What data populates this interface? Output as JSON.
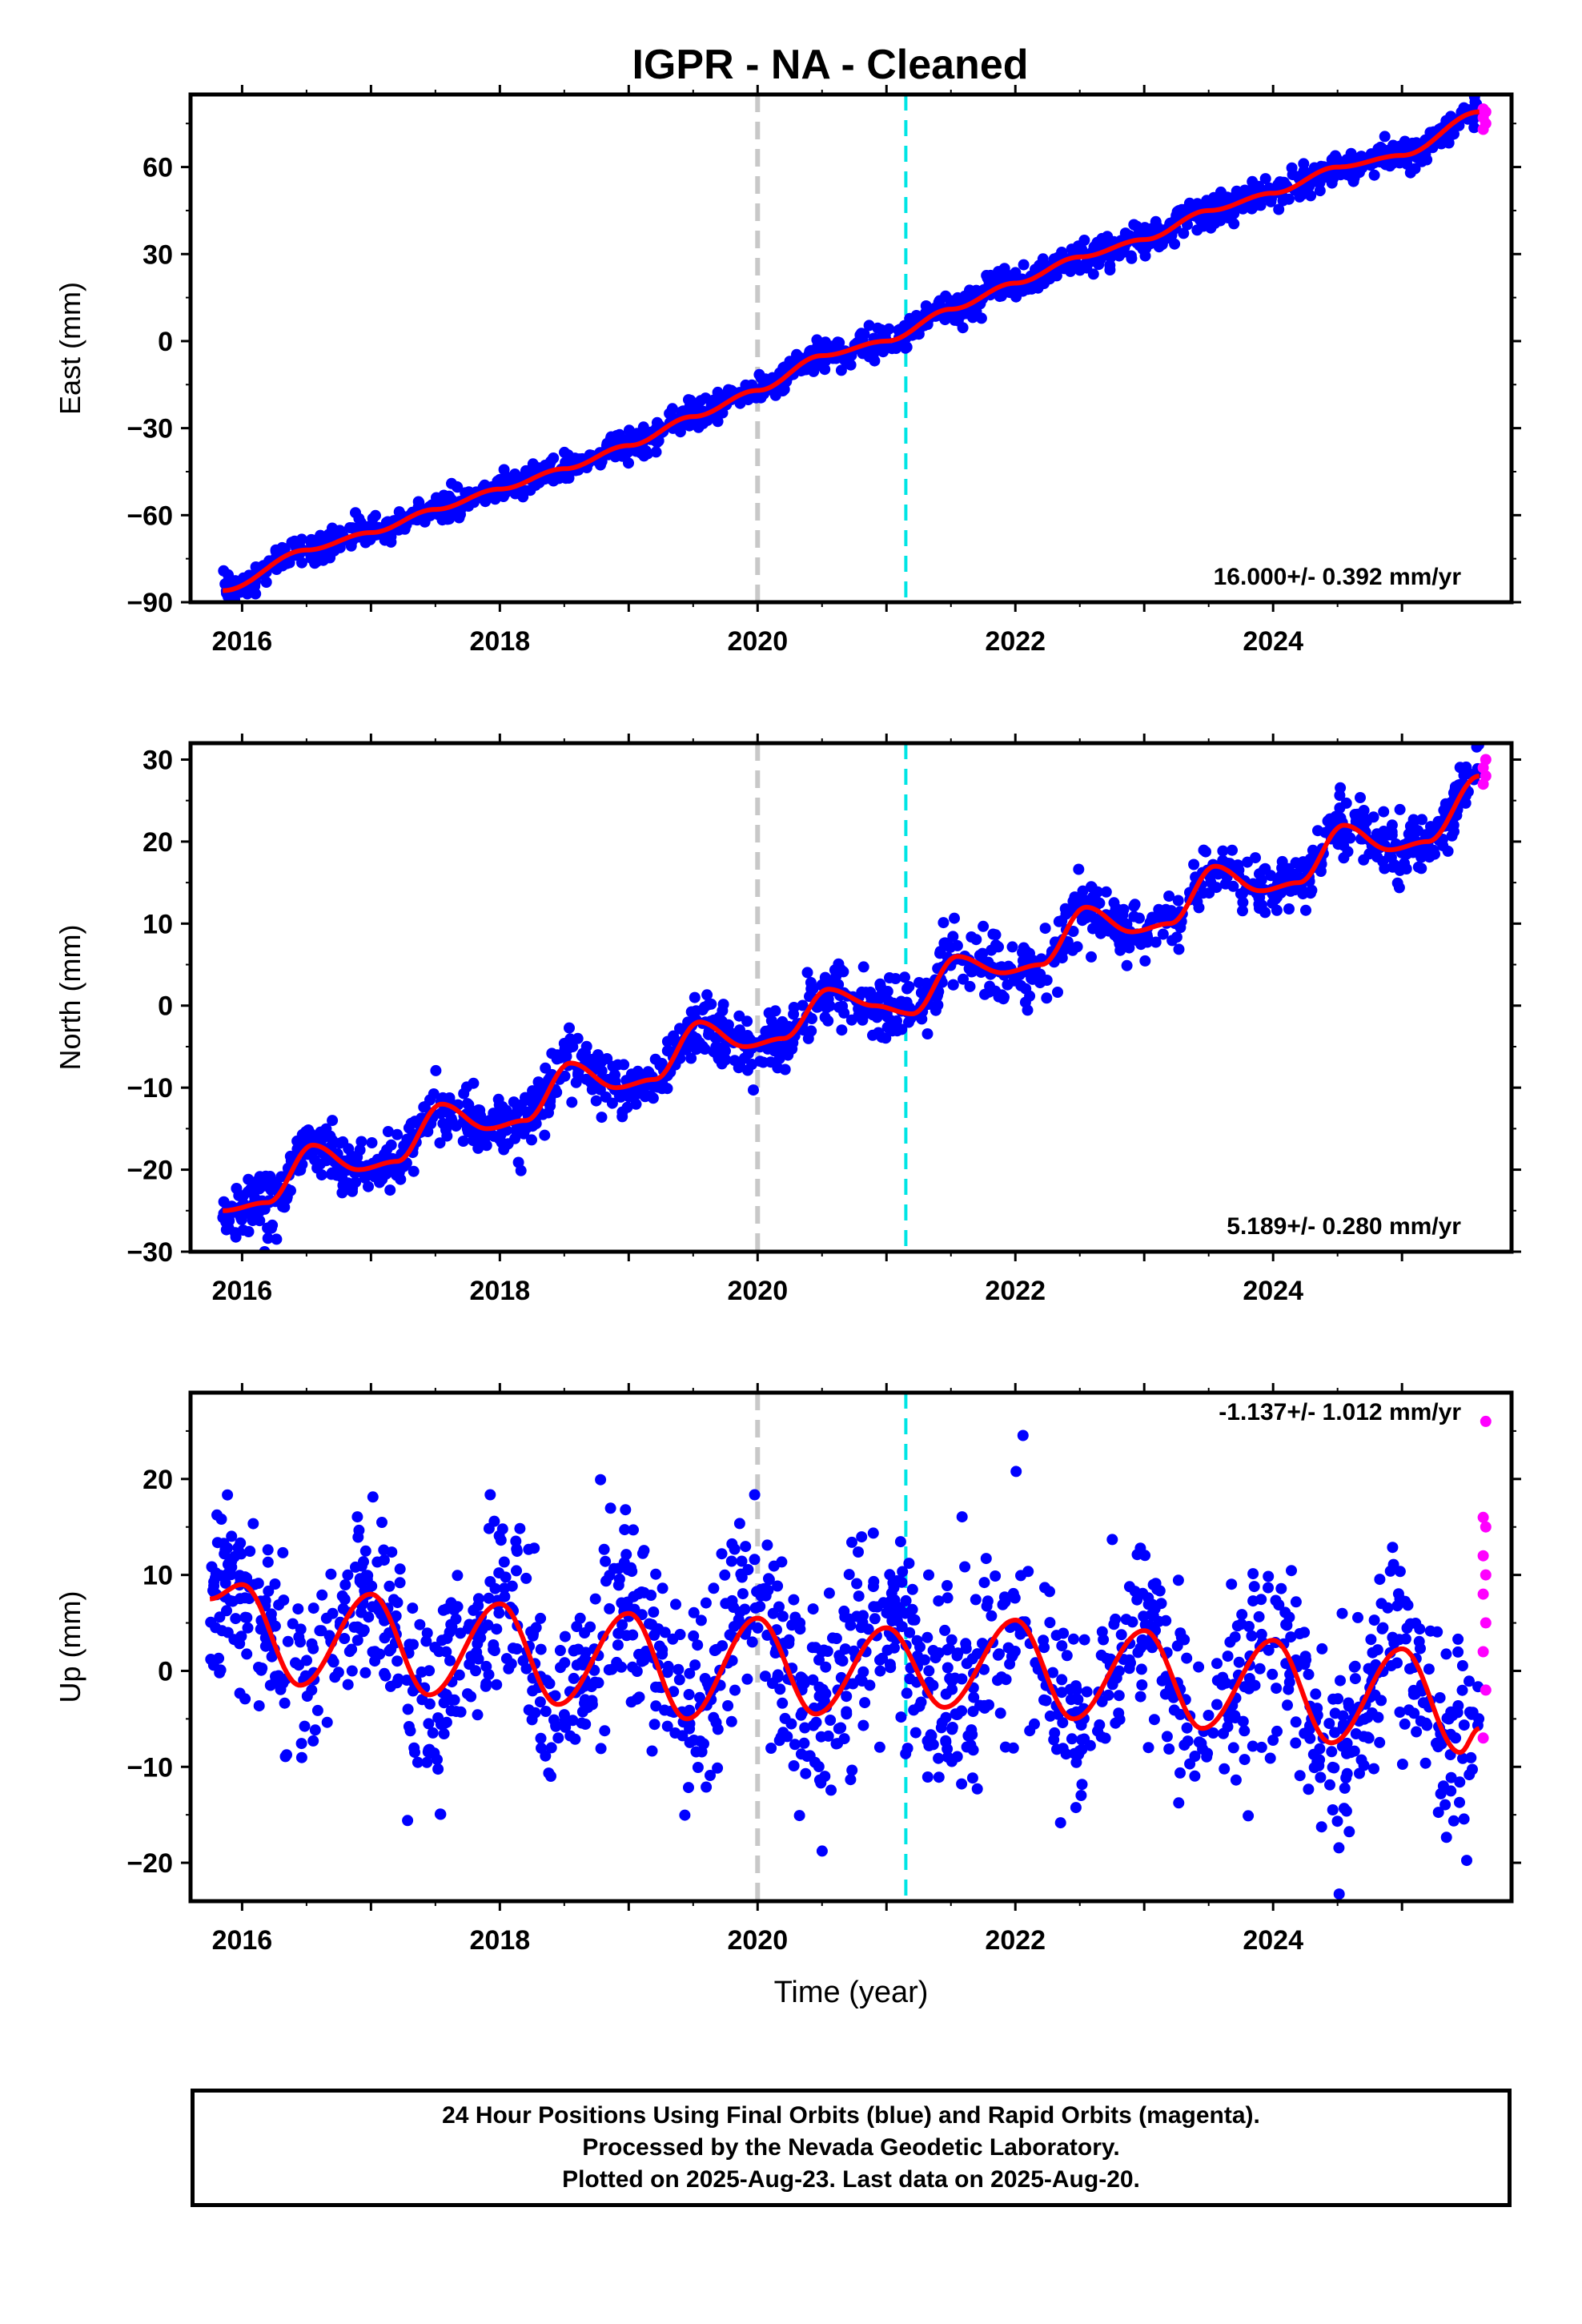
{
  "title": "IGPR  - NA - Cleaned",
  "colors": {
    "final_orbits": "#0000ff",
    "rapid_orbits": "#ff00ff",
    "model": "#ff0000",
    "event_gray": "#c8c8c8",
    "event_cyan": "#00e5e5"
  },
  "x_axis": {
    "label": "Time (year)",
    "range": [
      2015.6,
      2025.85
    ],
    "ticks": [
      "2016",
      "2018",
      "2020",
      "2022",
      "2024"
    ]
  },
  "events": [
    {
      "x": 2020.0,
      "style": "gray-dashed"
    },
    {
      "x": 2021.15,
      "style": "cyan-dashed"
    }
  ],
  "chart_data": [
    {
      "type": "scatter",
      "panel": "East",
      "ylabel": "East (mm)",
      "ylim": [
        -90,
        85
      ],
      "yticks": [
        "−90",
        "−60",
        "−30",
        "0",
        "30",
        "60"
      ],
      "rate_text": "16.000+/- 0.392 mm/yr",
      "rate": 16.0,
      "rate_sigma": 0.392,
      "x": [
        2015.85,
        2016.5,
        2017.0,
        2017.5,
        2018.0,
        2018.5,
        2019.0,
        2019.5,
        2020.0,
        2020.5,
        2021.0,
        2021.5,
        2022.0,
        2022.5,
        2023.0,
        2023.5,
        2024.0,
        2024.5,
        2025.0,
        2025.6
      ],
      "series": [
        {
          "values": [
            -86,
            -72,
            -66,
            -58,
            -51,
            -44,
            -36,
            -26,
            -17,
            -5,
            0,
            11,
            20,
            29,
            35,
            45,
            51,
            60,
            64,
            79
          ]
        }
      ],
      "scatter_sigma": 2.5,
      "rapid_values": [
        73,
        75,
        77,
        79,
        80
      ]
    },
    {
      "type": "scatter",
      "panel": "North",
      "ylabel": "North (mm)",
      "ylim": [
        -30,
        32
      ],
      "yticks": [
        "−30",
        "−20",
        "−10",
        "0",
        "10",
        "20",
        "30"
      ],
      "rate_text": "5.189+/- 0.280 mm/yr",
      "rate": 5.189,
      "rate_sigma": 0.28,
      "x": [
        2015.85,
        2016.2,
        2016.55,
        2016.9,
        2017.2,
        2017.55,
        2017.9,
        2018.2,
        2018.55,
        2018.9,
        2019.2,
        2019.55,
        2019.9,
        2020.2,
        2020.55,
        2020.9,
        2021.2,
        2021.55,
        2021.9,
        2022.2,
        2022.55,
        2022.9,
        2023.2,
        2023.55,
        2023.9,
        2024.2,
        2024.55,
        2024.9,
        2025.2,
        2025.6
      ],
      "series": [
        {
          "values": [
            -25,
            -24,
            -17,
            -20,
            -19,
            -12,
            -15,
            -14,
            -7,
            -10,
            -9,
            -2,
            -5,
            -4,
            2,
            0,
            -1,
            6,
            4,
            5,
            12,
            9,
            10,
            17,
            14,
            15,
            22,
            19,
            20,
            28
          ]
        }
      ],
      "scatter_sigma": 1.8,
      "rapid_values": [
        27,
        28,
        29,
        30
      ]
    },
    {
      "type": "scatter",
      "panel": "Up",
      "ylabel": "Up (mm)",
      "ylim": [
        -24,
        29
      ],
      "yticks": [
        "−20",
        "−10",
        "0",
        "10",
        "20"
      ],
      "rate_text": "-1.137+/- 1.012 mm/yr",
      "rate": -1.137,
      "rate_sigma": 1.012,
      "x": [
        2015.75,
        2016.0,
        2016.45,
        2017.0,
        2017.45,
        2018.0,
        2018.45,
        2019.0,
        2019.45,
        2020.0,
        2020.45,
        2021.0,
        2021.45,
        2022.0,
        2022.45,
        2023.0,
        2023.45,
        2024.0,
        2024.45,
        2025.0,
        2025.45,
        2025.6
      ],
      "series": [
        {
          "values": [
            7.5,
            9,
            -1.5,
            8,
            -2.5,
            7,
            -3.5,
            6,
            -5,
            5.5,
            -4.5,
            4.5,
            -3.8,
            5.3,
            -5,
            4.2,
            -6,
            3.2,
            -7.5,
            2.3,
            -8.5,
            -6
          ]
        }
      ],
      "scatter_sigma": 5.2,
      "rapid_values": [
        -7,
        -2,
        2,
        5,
        8,
        10,
        12,
        15,
        16,
        26
      ]
    }
  ],
  "footer": {
    "line1": "24 Hour Positions Using Final Orbits (blue) and Rapid Orbits (magenta).",
    "line2": "Processed by the Nevada Geodetic Laboratory.",
    "line3": "Plotted on 2025-Aug-23. Last data on 2025-Aug-20."
  }
}
